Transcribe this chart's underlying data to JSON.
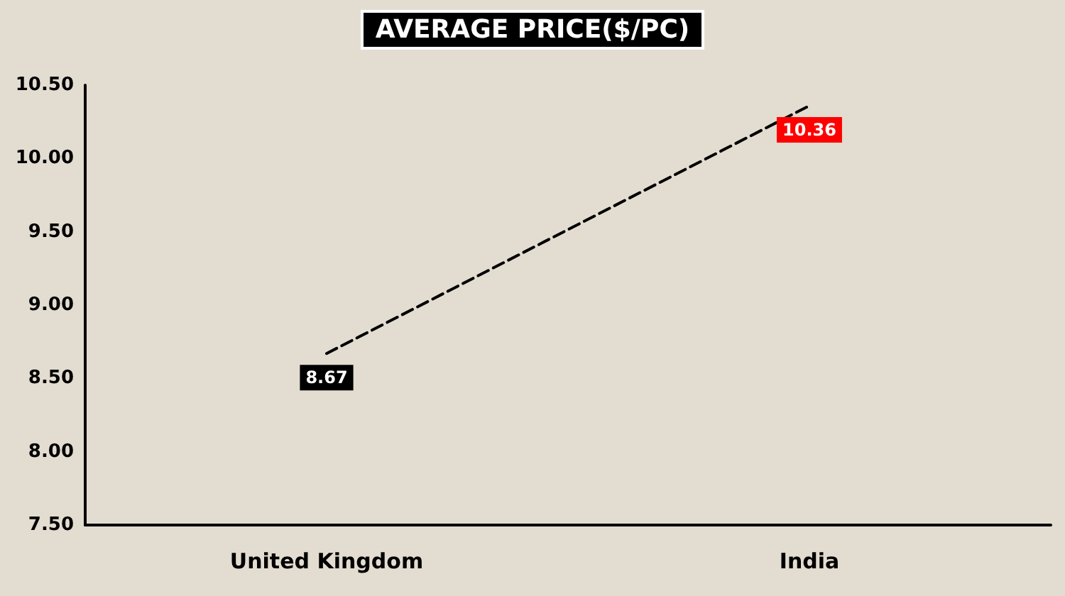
{
  "chart_data": {
    "type": "line",
    "title": "AVERAGE PRICE($/PC)",
    "categories": [
      "United Kingdom",
      "India"
    ],
    "series": [
      {
        "color": "#000000",
        "values": [
          8.67,
          10.36
        ],
        "colors": [
          "#000000",
          "#ff0000"
        ]
      }
    ],
    "ylim": [
      7.5,
      10.5
    ],
    "yticks": [
      {
        "value": 7.5,
        "label": "7.50"
      },
      {
        "value": 8,
        "label": "8.00"
      },
      {
        "value": 8.5,
        "label": "8.50"
      },
      {
        "value": 9,
        "label": "9.00"
      },
      {
        "value": 9.5,
        "label": "9.50"
      },
      {
        "value": 10,
        "label": "10.00"
      },
      {
        "value": 10.5,
        "label": "10.50"
      }
    ],
    "data_labels": true,
    "grid": false,
    "marker": "none",
    "line_style": "dashed"
  }
}
